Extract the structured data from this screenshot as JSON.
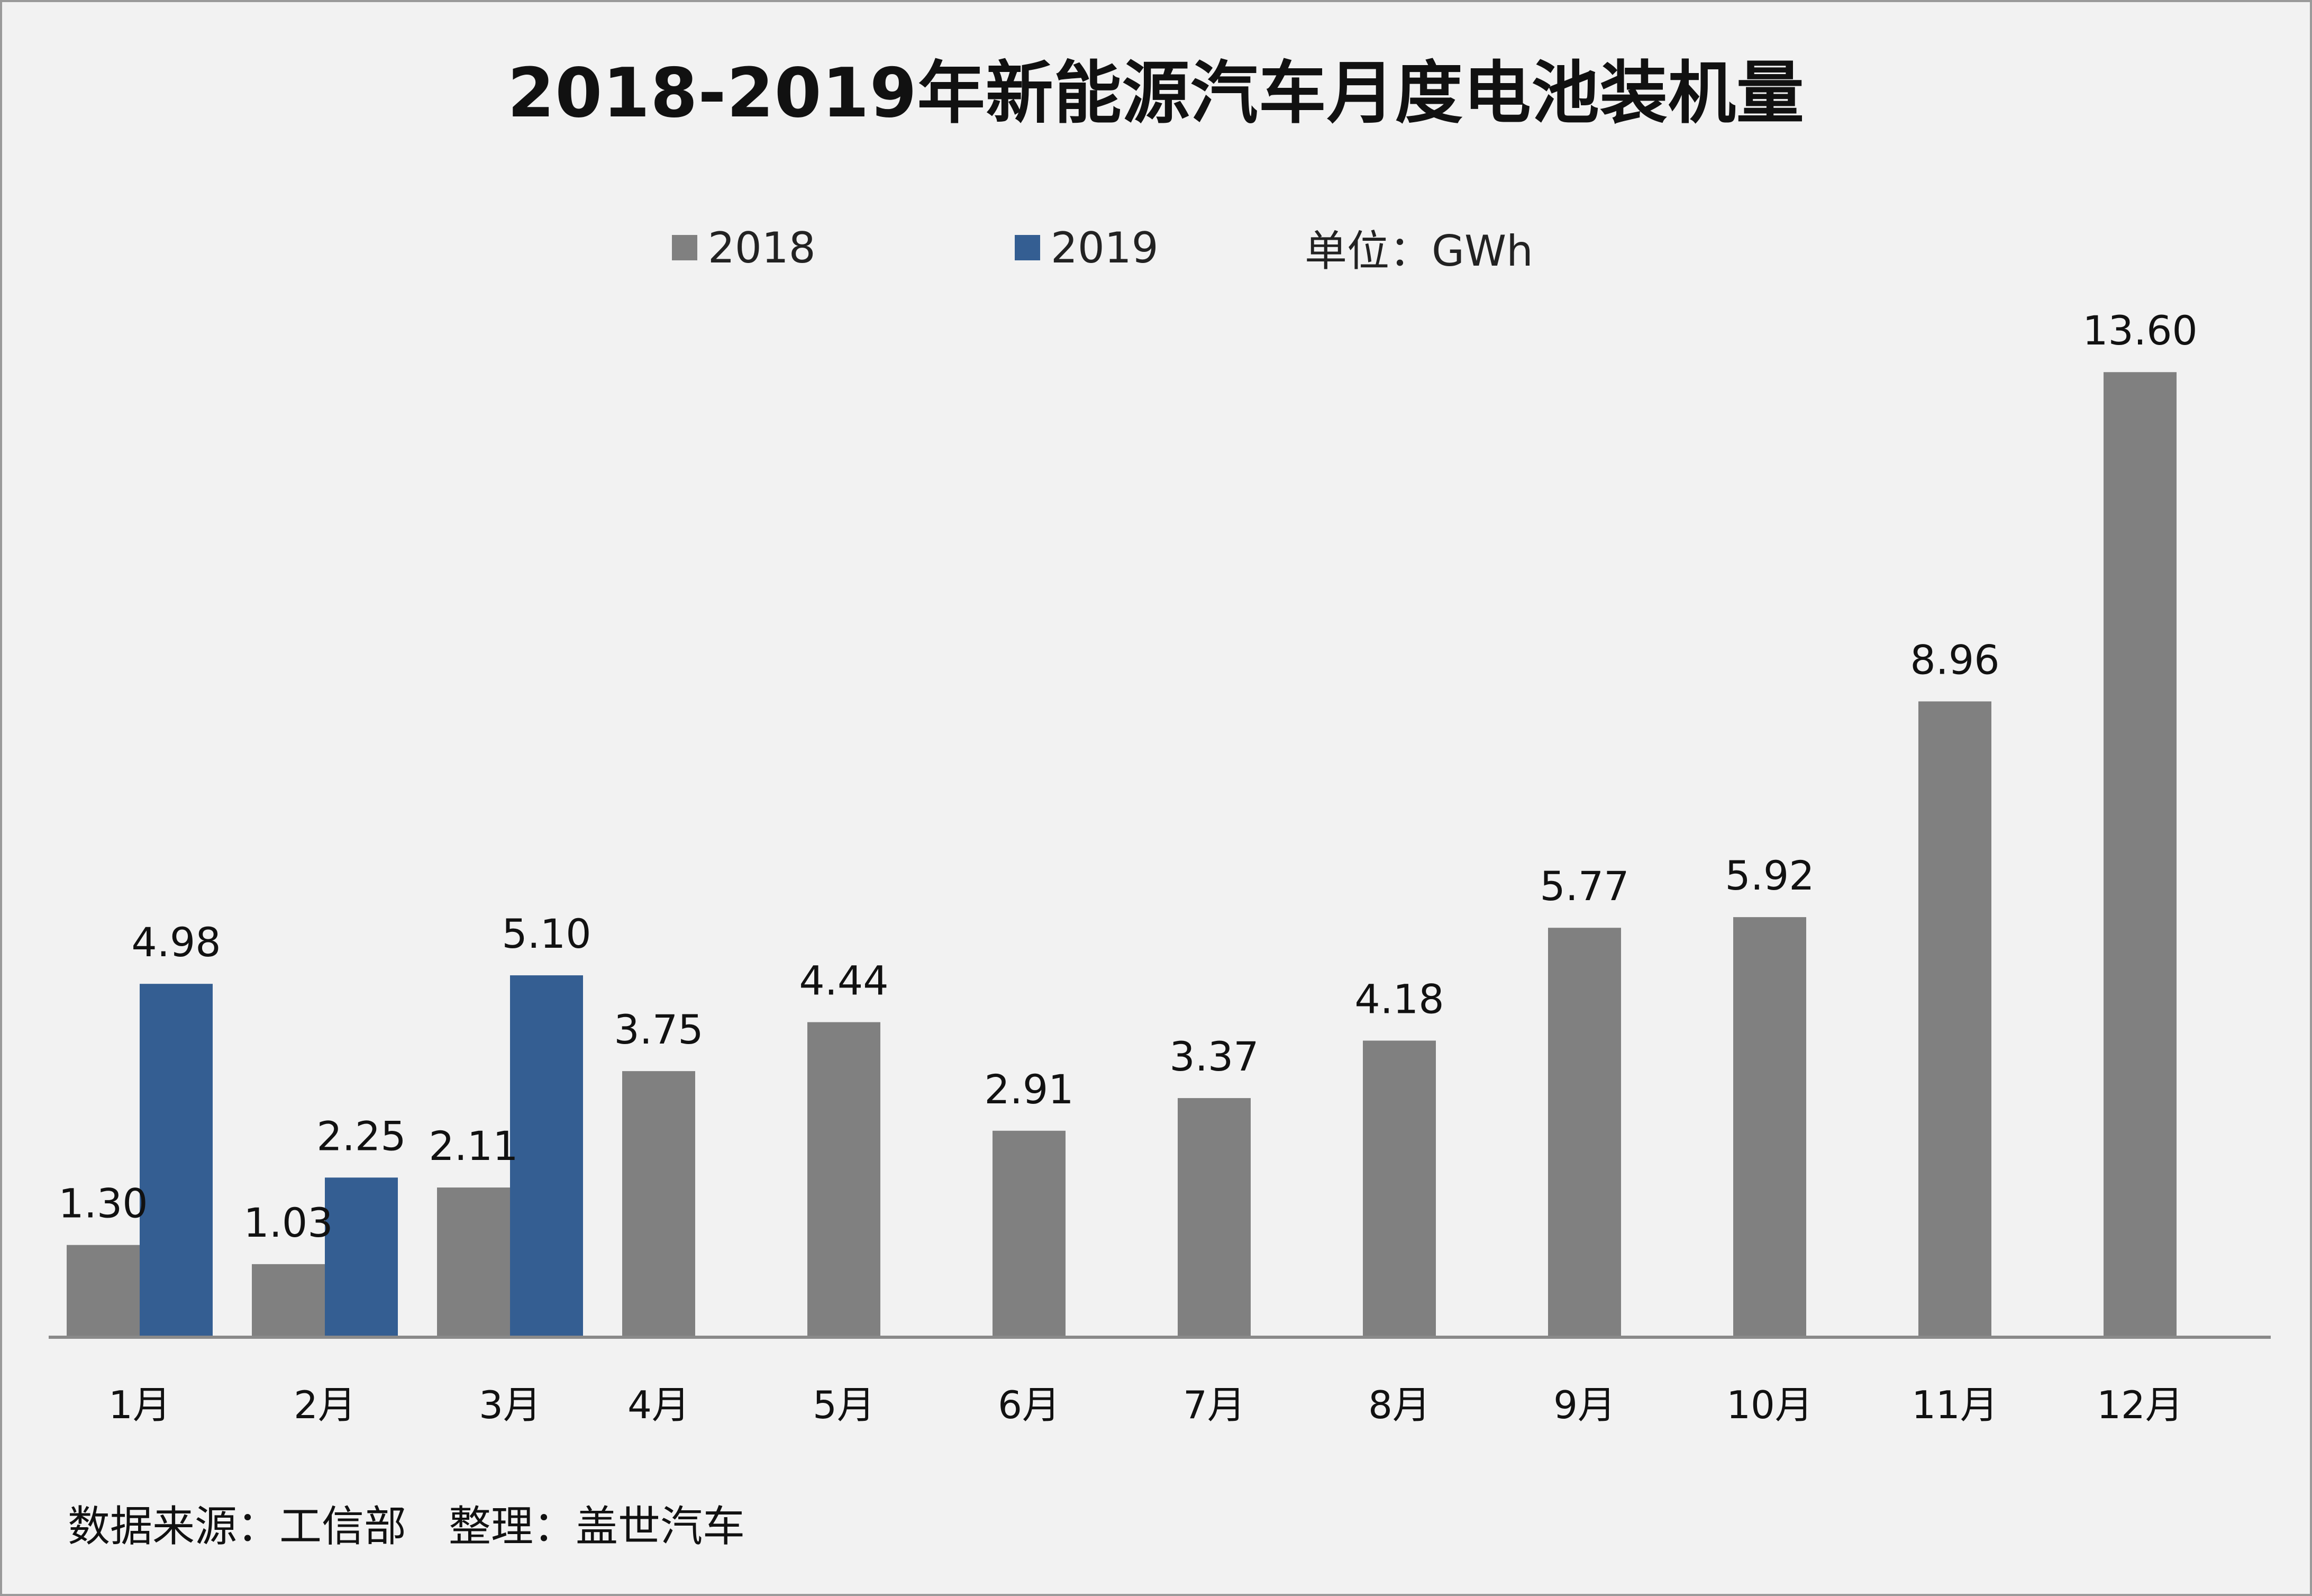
{
  "chart_data": {
    "type": "bar",
    "title": "2018-2019年新能源汽车月度电池装机量",
    "unit_note": "单位：GWh",
    "categories": [
      "1月",
      "2月",
      "3月",
      "4月",
      "5月",
      "6月",
      "7月",
      "8月",
      "9月",
      "10月",
      "11月",
      "12月"
    ],
    "series": [
      {
        "name": "2018",
        "color": "#808080",
        "values": [
          1.3,
          1.03,
          2.11,
          3.75,
          4.44,
          2.91,
          3.37,
          4.18,
          5.77,
          5.92,
          8.96,
          13.6
        ]
      },
      {
        "name": "2019",
        "color": "#345e92",
        "values": [
          4.98,
          2.25,
          5.1,
          null,
          null,
          null,
          null,
          null,
          null,
          null,
          null,
          null
        ]
      }
    ],
    "ylim": [
      0,
      15
    ],
    "grid": false,
    "legend_position": "top-center",
    "source_note": "数据来源：工信部　整理：盖世汽车"
  }
}
